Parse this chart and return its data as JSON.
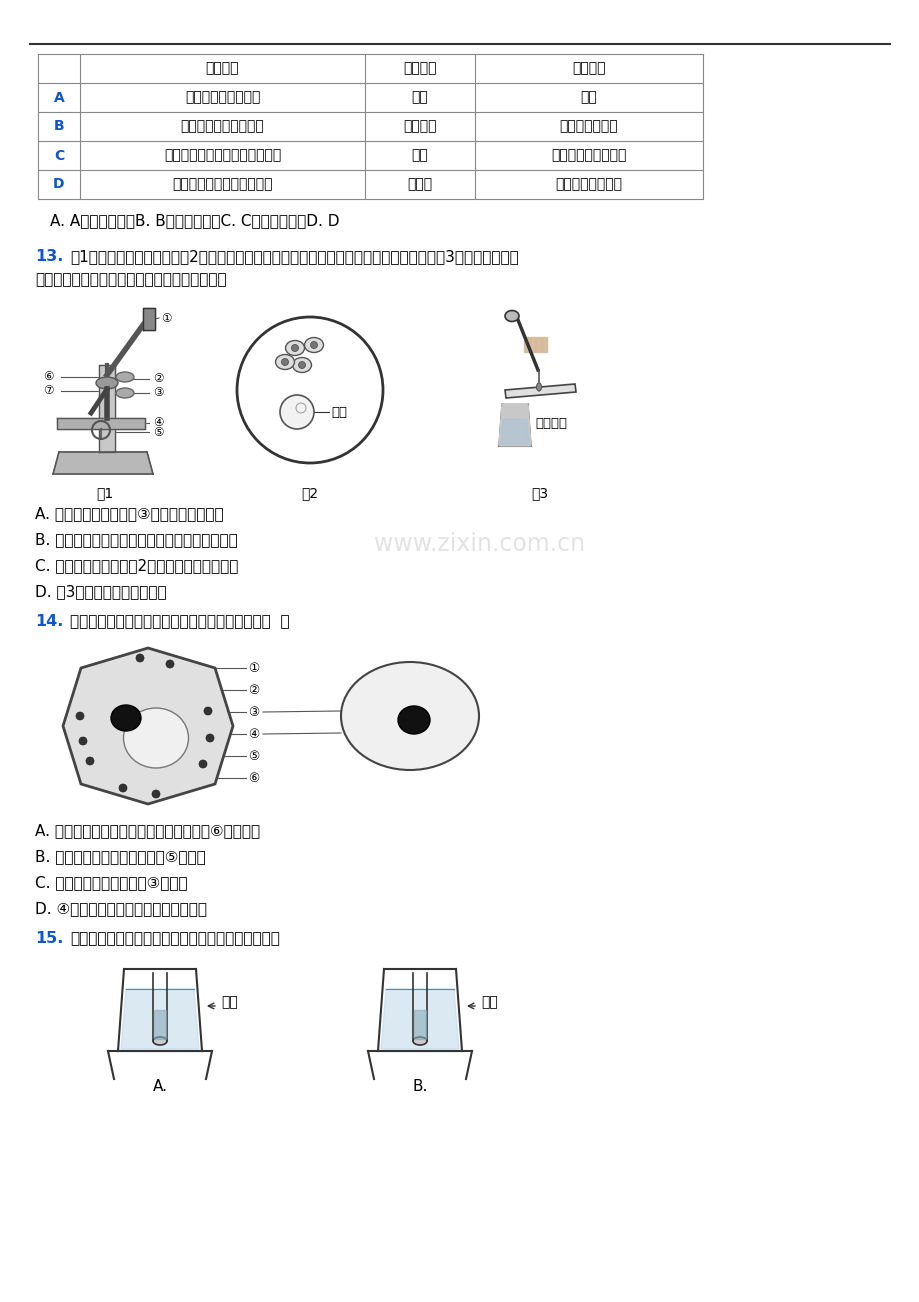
{
  "bg_color": "#ffffff",
  "blue_color": "#1155CC",
  "table_headers": [
    "",
    "实验名称",
    "实验材料",
    "使用目的"
  ],
  "table_rows": [
    [
      "A",
      "绿叶在光下产生淠粉",
      "酒精",
      "脱色"
    ],
    [
      "B",
      "观察人体口腔上皮细胞",
      "生理盐水",
      "为细胞提供营养"
    ],
    [
      "C",
      "探究食物在口腔内的化学性消化",
      "碗液",
      "检验淠粉是否被消化"
    ],
    [
      "D",
      "观察小鱼尾鳃内血液的流动",
      "湿棉絮",
      "保持小鱼正常呼吸"
    ]
  ],
  "q12_options": "A. A　　　　　　B. B　　　　　　C. C　　　　　　D. D",
  "q13_num": "13.",
  "q13_text1": "图1为显微镜结构示意图，图2表示用显微镜观察人口腔上皮细胞临时装片时看到的视野，图3是实验过程中的",
  "q13_text2": "其中一个操作步骤下列叙述不正确的是（　　）",
  "q13_A": "A. 对光时，可直接转动③，使其对准通光孔",
  "q13_B": "B. 视野中出现气泡可能是盖盖玻璃片时操作不当",
  "q13_C": "C. 向上移动玻片可将图2中的细胞移至视野中央",
  "q13_D": "D. 图3滴加的液体是生理盐水",
  "q14_num": "14.",
  "q14_text": "图是动植物细胞结构示意图，下列说法正确的是（  ）",
  "q14_A": "A. 西瓜中含有大量糖分，这些糖分存在于⑥细胞质内",
  "q14_B": "B. 细胞生命活动的控制中心是⑤细胞核",
  "q14_C": "C. 控制物质进出的结构是③细胞壁",
  "q14_D": "D. ④是线粒体，是呼吸作用进行的场所",
  "q15_num": "15.",
  "q15_text": "下列关于隔水加热的实验装置中，正确的是（　　）",
  "watermark": "www.zixin.com.cn",
  "fig1_label": "图1",
  "fig2_label": "图2",
  "fig3_label": "图3",
  "qipao": "气泡",
  "diajia": "滴加液体",
  "jiujing": "酒精",
  "qingshui": "清水"
}
